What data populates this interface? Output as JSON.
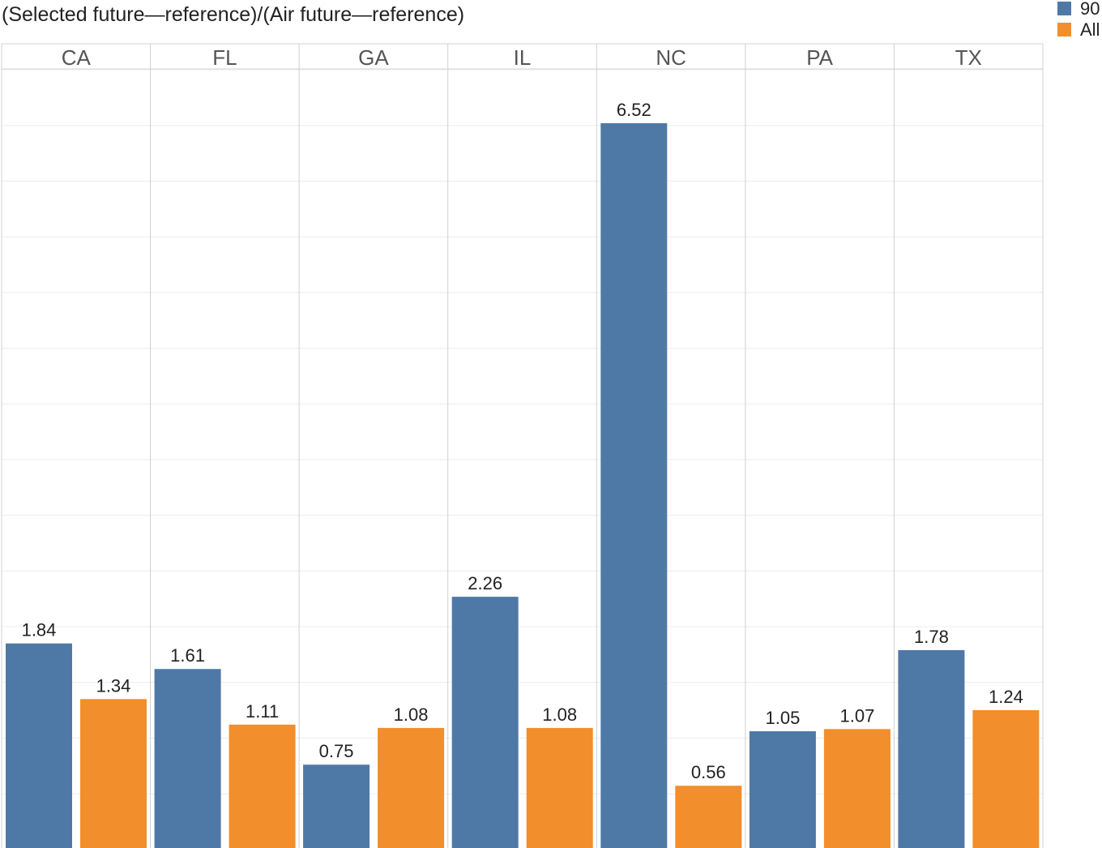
{
  "chart_data": {
    "type": "bar",
    "title": "(Selected future—reference)/(Air future—reference)",
    "categories": [
      "CA",
      "FL",
      "GA",
      "IL",
      "NC",
      "PA",
      "TX"
    ],
    "series": [
      {
        "name": "90",
        "color": "#4e79a7",
        "values": [
          1.84,
          1.61,
          0.75,
          2.26,
          6.52,
          1.05,
          1.78
        ],
        "labels": [
          "1.84",
          "1.61",
          "0.75",
          "2.26",
          "6.52",
          "1.05",
          "1.78"
        ]
      },
      {
        "name": "All",
        "color": "#f28e2b",
        "values": [
          1.34,
          1.11,
          1.08,
          1.08,
          0.56,
          1.07,
          1.24
        ],
        "labels": [
          "1.34",
          "1.11",
          "1.08",
          "1.08",
          "0.56",
          "1.07",
          "1.24"
        ]
      }
    ],
    "ylim": [
      0,
      7
    ],
    "grid": true,
    "legend_position": "top-right"
  }
}
